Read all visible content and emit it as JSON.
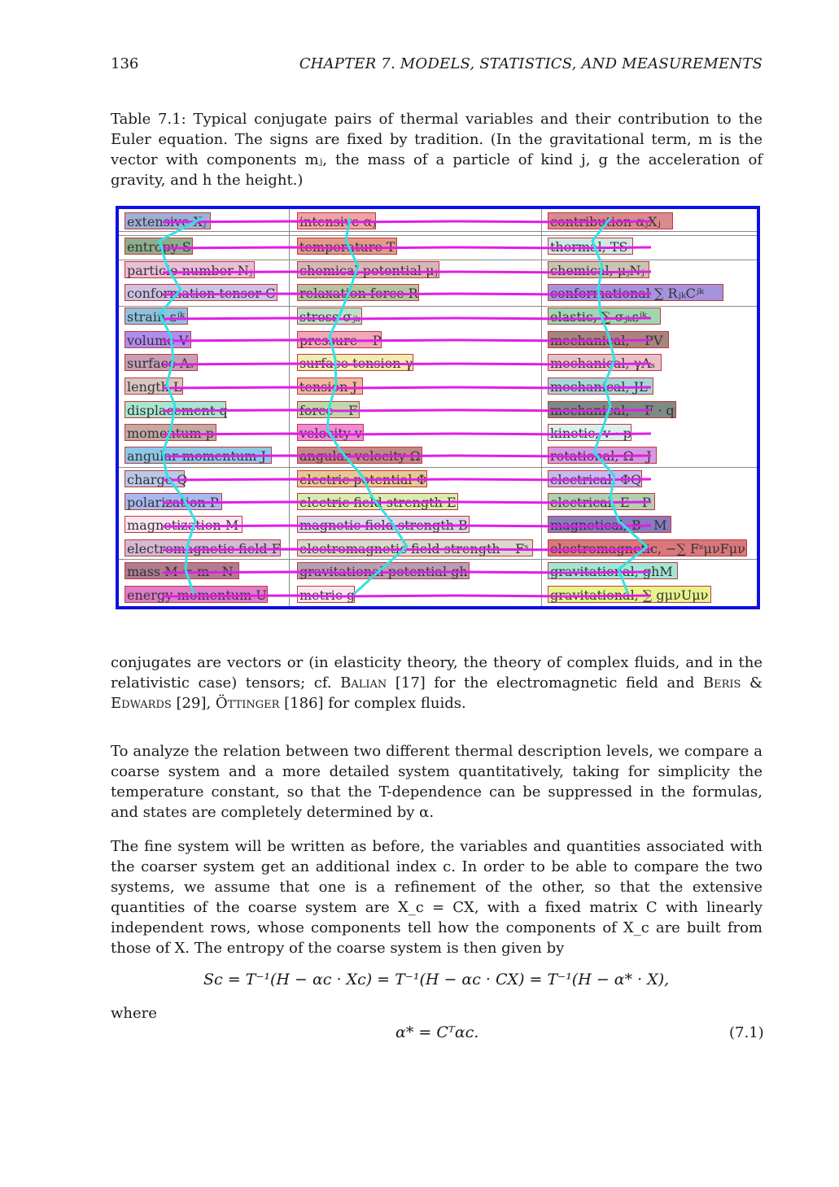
{
  "header": {
    "page_number": "136",
    "chapter": "CHAPTER 7.  MODELS, STATISTICS, AND MEASUREMENTS"
  },
  "caption": "Table 7.1: Typical conjugate pairs of thermal variables and their contribution to the Euler equation. The signs are fixed by tradition. (In the gravitational term, m is the vector with components mⱼ, the mass of a particle of kind j, g the acceleration of gravity, and h the height.)",
  "table": {
    "rows": [
      {
        "extensive": "extensive Xⱼ",
        "intensive": "intensive αⱼ",
        "contribution": "contribution αⱼXⱼ",
        "colors": [
          "#9fb0d8",
          "#f2a3a8",
          "#d98a8e"
        ]
      },
      {
        "extensive": "entropy S",
        "intensive": "temperature T",
        "contribution": "thermal, TS",
        "colors": [
          "#8fae8c",
          "#e39a8a",
          "#cfe8e4"
        ]
      },
      {
        "extensive": "particle number Nⱼ",
        "intensive": "chemical potential μⱼ",
        "contribution": "chemical, μⱼNⱼ",
        "colors": [
          "#e9bfd8",
          "#d9b6b6",
          "#c9c3b4"
        ]
      },
      {
        "extensive": "conformation tensor C",
        "intensive": "relaxation force R",
        "contribution": "conformational ∑ RⱼₖCʲᵏ",
        "colors": [
          "#cfc2e4",
          "#b8c2a0",
          "#a593de"
        ]
      },
      {
        "extensive": "strain εʲᵏ",
        "intensive": "stress σⱼₖ",
        "contribution": "elastic, ∑ σⱼₖεʲᵏ",
        "colors": [
          "#8fc2e0",
          "#bfe0c9",
          "#9fd7b0"
        ]
      },
      {
        "extensive": "volume V",
        "intensive": "pressure −P",
        "contribution": "mechanical, −PV",
        "colors": [
          "#b08cf0",
          "#f0a8b8",
          "#a8847e"
        ]
      },
      {
        "extensive": "surface Aₛ",
        "intensive": "surface tension γ",
        "contribution": "mechanical, γAₛ",
        "colors": [
          "#c79fb6",
          "#f3ecb0",
          "#e8c2c8"
        ]
      },
      {
        "extensive": "length L",
        "intensive": "tension J",
        "contribution": "mechanical, JL",
        "colors": [
          "#d8c6c0",
          "#f2b89e",
          "#a8d6d8"
        ]
      },
      {
        "extensive": "displacement q",
        "intensive": "force −F",
        "contribution": "mechanical, −F · q",
        "colors": [
          "#a8e6d0",
          "#bfd8a8",
          "#7e8a84"
        ]
      },
      {
        "extensive": "momentum p",
        "intensive": "velocity v",
        "contribution": "kinetic, v · p",
        "colors": [
          "#c4a8a4",
          "#f28ad8",
          "#d8f0ee"
        ]
      },
      {
        "extensive": "angular momentum J",
        "intensive": "angular velocity Ω",
        "contribution": "rotational, Ω · J",
        "colors": [
          "#8ec8e8",
          "#c48888",
          "#d59ae0"
        ]
      },
      {
        "extensive": "charge Q",
        "intensive": "electric potential Φ",
        "contribution": "electrical, ΦQ",
        "colors": [
          "#b8c8e8",
          "#e8c890",
          "#c8b8f0"
        ]
      },
      {
        "extensive": "polarization P",
        "intensive": "electric field strength E",
        "contribution": "electrical, E · P",
        "colors": [
          "#a8b8f0",
          "#d8ecb0",
          "#b0d0b0"
        ]
      },
      {
        "extensive": "magnetization M",
        "intensive": "magnetic field strength B",
        "contribution": "magnetical, B · M",
        "colors": [
          "#fbe4f2",
          "#dcd6ec",
          "#8a7ac0"
        ]
      },
      {
        "extensive": "electromagnetic field F",
        "intensive": "electromagnetic field strength −Fˢ",
        "contribution": "electromagnetic, −∑ FˢμνFμν",
        "colors": [
          "#d4b8d4",
          "#d8d8cc",
          "#d8787c"
        ]
      },
      {
        "extensive": "mass M = m · N",
        "intensive": "gravitational potential gh",
        "contribution": "gravitational, ghM",
        "colors": [
          "#b07c90",
          "#b8a0b4",
          "#a0e8d4"
        ]
      },
      {
        "extensive": "energy-momentum U",
        "intensive": "metric g",
        "contribution": "gravitational, ∑ gμνUμν",
        "colors": [
          "#e07cc8",
          "#fbe6f0",
          "#e8f48c"
        ]
      }
    ]
  },
  "paragraphs": {
    "p1_a": "conjugates are vectors or (in elasticity theory, the theory of complex fluids, and in the relativistic case) tensors; cf. ",
    "p1_balian": "Balian",
    "p1_b": " [17] for the electromagnetic field and ",
    "p1_beris": "Beris & Edwards",
    "p1_c": " [29], ",
    "p1_ottinger": "Öttinger",
    "p1_d": " [186] for complex fluids.",
    "p2": "To analyze the relation between two different thermal description levels, we compare a coarse system and a more detailed system quantitatively, taking for simplicity the temperature constant, so that the T-dependence can be suppressed in the formulas, and states are completely determined by α.",
    "p3": "The fine system will be written as before, the variables and quantities associated with the coarser system get an additional index c. In order to be able to compare the two systems, we assume that one is a refinement of the other, so that the extensive quantities of the coarse system are X_c = CX, with a fixed matrix C with linearly independent rows, whose components tell how the components of X_c are built from those of X. The entropy of the coarse system is then given by",
    "equation1": "Sᴄ = T⁻¹(H − αᴄ · Xᴄ) = T⁻¹(H − αᴄ · CX) = T⁻¹(H − α* · X),",
    "where": "where",
    "equation2": "α* = Cᵀαᴄ.",
    "equation2_number": "(7.1)"
  },
  "colors": {
    "table_border": "#0d10e0",
    "overlay_magenta": "#e01ee6",
    "overlay_cyan": "#33e0e6",
    "cell_border": "#c0393b"
  }
}
